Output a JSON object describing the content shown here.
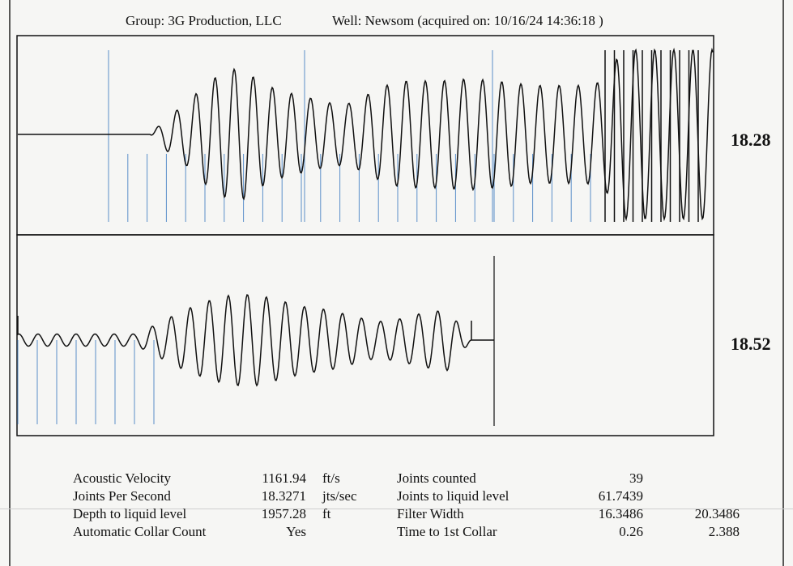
{
  "header": {
    "group": "Group: 3G Production, LLC",
    "well": "Well: Newsom (acquired on: 10/16/24 14:36:18 )"
  },
  "panels": {
    "top_value": "18.28",
    "bottom_value": "18.52"
  },
  "stats": {
    "rows": [
      {
        "label": "Acoustic Velocity",
        "value": "1161.94",
        "unit": "ft/s",
        "label2": "Joints counted",
        "value2": "39",
        "value3": ""
      },
      {
        "label": "Joints Per Second",
        "value": "18.3271",
        "unit": "jts/sec",
        "label2": "Joints to liquid level",
        "value2": "61.7439",
        "value3": ""
      },
      {
        "label": "Depth to liquid level",
        "value": "1957.28",
        "unit": "ft",
        "label2": "Filter Width",
        "value2": "16.3486",
        "value3": "20.3486"
      },
      {
        "label": "Automatic Collar Count",
        "value": "Yes",
        "unit": "",
        "label2": "Time to 1st Collar",
        "value2": "0.26",
        "value3": "2.388"
      }
    ]
  },
  "colors": {
    "trace": "#111111",
    "collar_marker": "#5b8fc9",
    "frame": "#111111"
  },
  "chart_data": [
    {
      "type": "line",
      "panel": "top",
      "series": [
        {
          "values": [
            0,
            0,
            0,
            0,
            0.2,
            0.35,
            0.55,
            0.7,
            0.75,
            0.6,
            0.5,
            0.45,
            0.4,
            0.35,
            0.35,
            0.45,
            0.55,
            0.6,
            0.6,
            0.6,
            0.62,
            0.62,
            0.6,
            0.58,
            0.55,
            0.55,
            0.55,
            0.55,
            0.6,
            0.95,
            0.95,
            0.95,
            0.95,
            0.95,
            0.95
          ]
        }
      ],
      "collar_markers": 32,
      "tall_markers": 3,
      "value": "18.28"
    },
    {
      "type": "line",
      "panel": "bottom",
      "series": [
        {
          "values": [
            0.1,
            0.1,
            0.1,
            0.1,
            0.1,
            0.1,
            0.3,
            0.5,
            0.65,
            0.75,
            0.75,
            0.65,
            0.55,
            0.5,
            0.4,
            0.3,
            0.35,
            0.45,
            0.5,
            0
          ]
        }
      ],
      "collar_markers": 8,
      "value": "18.52"
    }
  ]
}
